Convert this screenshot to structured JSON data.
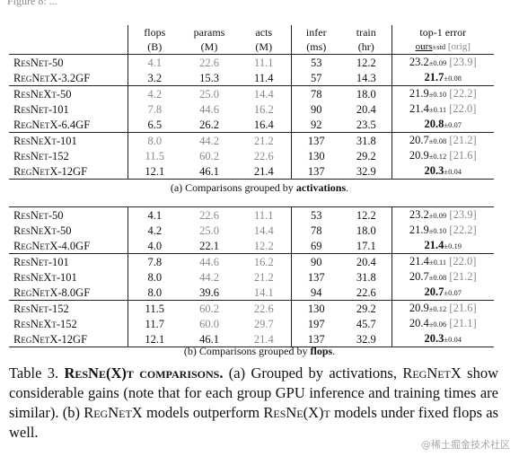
{
  "top_caption_fragment": "Figure 8: ...",
  "table1": {
    "headers": {
      "flops": "flops",
      "flops_unit": "(B)",
      "params": "params",
      "params_unit": "(M)",
      "acts": "acts",
      "acts_unit": "(M)",
      "infer": "infer",
      "infer_unit": "(ms)",
      "train": "train",
      "train_unit": "(hr)",
      "top1": "top-1 error",
      "ours": "ours",
      "ours_sub": "±std",
      "orig": "[orig]"
    },
    "groups": [
      [
        {
          "model": "ResNet-50",
          "flops": "4.1",
          "params": "22.6",
          "acts": "11.1",
          "infer": "53",
          "train": "12.2",
          "err": "23.2",
          "std": "±0.09",
          "orig": "[23.9]"
        },
        {
          "model": "RegNetX-3.2GF",
          "flops": "3.2",
          "params": "15.3",
          "acts": "11.4",
          "infer": "57",
          "train": "14.3",
          "err": "21.7",
          "std": "±0.08",
          "orig": ""
        }
      ],
      [
        {
          "model": "ResNeXt-50",
          "flops": "4.2",
          "params": "25.0",
          "acts": "14.4",
          "infer": "78",
          "train": "18.0",
          "err": "21.9",
          "std": "±0.10",
          "orig": "[22.2]"
        },
        {
          "model": "ResNet-101",
          "flops": "7.8",
          "params": "44.6",
          "acts": "16.2",
          "infer": "90",
          "train": "20.4",
          "err": "21.4",
          "std": "±0.11",
          "orig": "[22.0]"
        },
        {
          "model": "RegNetX-6.4GF",
          "flops": "6.5",
          "params": "26.2",
          "acts": "16.4",
          "infer": "92",
          "train": "23.5",
          "err": "20.8",
          "std": "±0.07",
          "orig": ""
        }
      ],
      [
        {
          "model": "ResNeXt-101",
          "flops": "8.0",
          "params": "44.2",
          "acts": "21.2",
          "infer": "137",
          "train": "31.8",
          "err": "20.7",
          "std": "±0.08",
          "orig": "[21.2]"
        },
        {
          "model": "ResNet-152",
          "flops": "11.5",
          "params": "60.2",
          "acts": "22.6",
          "infer": "130",
          "train": "29.2",
          "err": "20.9",
          "std": "±0.12",
          "orig": "[21.6]"
        },
        {
          "model": "RegNetX-12GF",
          "flops": "12.1",
          "params": "46.1",
          "acts": "21.4",
          "infer": "137",
          "train": "32.9",
          "err": "20.3",
          "std": "±0.04",
          "orig": ""
        }
      ]
    ],
    "caption_prefix": "(a) Comparisons grouped by ",
    "caption_bold": "activations",
    "caption_suffix": "."
  },
  "table2": {
    "groups": [
      [
        {
          "model": "ResNet-50",
          "flops": "4.1",
          "params": "22.6",
          "acts": "11.1",
          "infer": "53",
          "train": "12.2",
          "err": "23.2",
          "std": "±0.09",
          "orig": "[23.9]"
        },
        {
          "model": "ResNeXt-50",
          "flops": "4.2",
          "params": "25.0",
          "acts": "14.4",
          "infer": "78",
          "train": "18.0",
          "err": "21.9",
          "std": "±0.10",
          "orig": "[22.2]"
        },
        {
          "model": "RegNetX-4.0GF",
          "flops": "4.0",
          "params": "22.1",
          "acts": "12.2",
          "infer": "69",
          "train": "17.1",
          "err": "21.4",
          "std": "±0.19",
          "orig": ""
        }
      ],
      [
        {
          "model": "ResNet-101",
          "flops": "7.8",
          "params": "44.6",
          "acts": "16.2",
          "infer": "90",
          "train": "20.4",
          "err": "21.4",
          "std": "±0.11",
          "orig": "[22.0]"
        },
        {
          "model": "ResNeXt-101",
          "flops": "8.0",
          "params": "44.2",
          "acts": "21.2",
          "infer": "137",
          "train": "31.8",
          "err": "20.7",
          "std": "±0.08",
          "orig": "[21.2]"
        },
        {
          "model": "RegNetX-8.0GF",
          "flops": "8.0",
          "params": "39.6",
          "acts": "14.1",
          "infer": "94",
          "train": "22.6",
          "err": "20.7",
          "std": "±0.07",
          "orig": ""
        }
      ],
      [
        {
          "model": "ResNet-152",
          "flops": "11.5",
          "params": "60.2",
          "acts": "22.6",
          "infer": "130",
          "train": "29.2",
          "err": "20.9",
          "std": "±0.12",
          "orig": "[21.6]"
        },
        {
          "model": "ResNeXt-152",
          "flops": "11.7",
          "params": "60.0",
          "acts": "29.7",
          "infer": "197",
          "train": "45.7",
          "err": "20.4",
          "std": "±0.06",
          "orig": "[21.1]"
        },
        {
          "model": "RegNetX-12GF",
          "flops": "12.1",
          "params": "46.1",
          "acts": "21.4",
          "infer": "137",
          "train": "32.9",
          "err": "20.3",
          "std": "±0.04",
          "orig": ""
        }
      ]
    ],
    "caption_prefix": "(b) Comparisons grouped by ",
    "caption_bold": "flops",
    "caption_suffix": "."
  },
  "table_caption": {
    "label": "Table 3. ",
    "bold_title": "ResNe(X)t comparisons.",
    "text_a": " (a) Grouped by activations, ",
    "regnetx1": "RegNetX",
    "text_b": " show considerable gains (note that for each group GPU inference and training times are similar). (b) ",
    "regnetx2": "RegNetX",
    "text_c": " models outperform ",
    "resnext": "ResNe(X)t",
    "text_d": " models under fixed flops as well."
  },
  "watermark": "@稀土掘金技术社区"
}
